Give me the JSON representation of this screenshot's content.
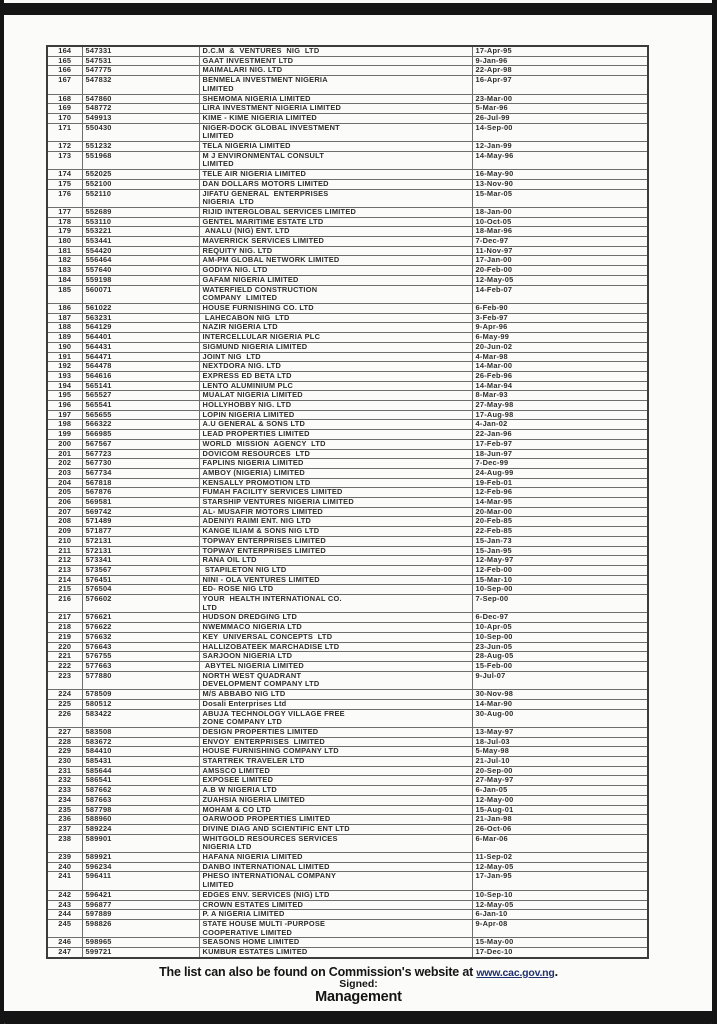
{
  "footer": {
    "note_prefix": "The list can also be found on Commission's website at ",
    "link_text": "www.cac.gov.ng",
    "note_suffix": ".",
    "signed_label": "Signed:",
    "signed_by": "Management",
    "link_color": "#20306e"
  },
  "table": {
    "rows": [
      [
        "164",
        "547331",
        "D.C.M  &  VENTURES  NIG  LTD",
        "17-Apr-95"
      ],
      [
        "165",
        "547531",
        "GAAT INVESTMENT LTD",
        "9-Jan-96"
      ],
      [
        "166",
        "547775",
        "MAIMALARI NIG. LTD",
        "22-Apr-98"
      ],
      [
        "167",
        "547832",
        "BENMELA INVESTMENT NIGERIA\nLIMITED",
        "16-Apr-97"
      ],
      [
        "168",
        "547860",
        "SHEMOMA NIGERIA LIMITED",
        "23-Mar-00"
      ],
      [
        "169",
        "548772",
        "LIRA INVESTMENT NIGERIA LIMITED",
        "5-Mar-96"
      ],
      [
        "170",
        "549913",
        "KIME - KIME NIGERIA LIMITED",
        "26-Jul-99"
      ],
      [
        "171",
        "550430",
        "NIGER-DOCK GLOBAL INVESTMENT\nLIMITED",
        "14-Sep-00"
      ],
      [
        "172",
        "551232",
        "TELA NIGERIA LIMITED",
        "12-Jan-99"
      ],
      [
        "173",
        "551968",
        "M J ENVIRONMENTAL CONSULT\nLIMITED",
        "14-May-96"
      ],
      [
        "174",
        "552025",
        "TELE AIR NIGERIA LIMITED",
        "16-May-90"
      ],
      [
        "175",
        "552100",
        "DAN DOLLARS MOTORS LIMITED",
        "13-Nov-90"
      ],
      [
        "176",
        "552110",
        "JIFATU GENERAL  ENTERPRISES\nNIGERIA  LTD",
        "15-Mar-05"
      ],
      [
        "177",
        "552689",
        "RIJID INTERGLOBAL SERVICES LIMITED",
        "18-Jan-00"
      ],
      [
        "178",
        "553110",
        "GENTEL MARITIME ESTATE LTD",
        "10-Oct-05"
      ],
      [
        "179",
        "553221",
        " ANALU (NIG) ENT. LTD",
        "18-Mar-96"
      ],
      [
        "180",
        "553441",
        "MAVERRICK SERVICES LIMITED",
        "7-Dec-97"
      ],
      [
        "181",
        "554420",
        "REQUITY NIG. LTD",
        "11-Nov-97"
      ],
      [
        "182",
        "556464",
        "AM-PM GLOBAL NETWORK LIMITED",
        "17-Jan-00"
      ],
      [
        "183",
        "557640",
        "GODIYA NIG. LTD",
        "20-Feb-00"
      ],
      [
        "184",
        "559198",
        "GAFAM NIGERIA LIMITED",
        "12-May-05"
      ],
      [
        "185",
        "560071",
        "WATERFIELD CONSTRUCTION\nCOMPANY  LIMITED",
        "14-Feb-07"
      ],
      [
        "186",
        "561022",
        "HOUSE FURNISHING CO. LTD",
        "6-Feb-90"
      ],
      [
        "187",
        "563231",
        " LAHECABON NIG  LTD",
        "3-Feb-97"
      ],
      [
        "188",
        "564129",
        "NAZIR NIGERIA LTD",
        "9-Apr-96"
      ],
      [
        "189",
        "564401",
        "INTERCELLULAR NIGERIA PLC",
        "6-May-99"
      ],
      [
        "190",
        "564431",
        "SIGMUND NIGERIA LIMITED",
        "20-Jun-02"
      ],
      [
        "191",
        "564471",
        "JOINT NIG  LTD",
        "4-Mar-98"
      ],
      [
        "192",
        "564478",
        "NEXTDORA NIG. LTD",
        "14-Mar-00"
      ],
      [
        "193",
        "564616",
        "EXPRESS ED BETA LTD",
        "26-Feb-96"
      ],
      [
        "194",
        "565141",
        "LENTO ALUMINIUM PLC",
        "14-Mar-94"
      ],
      [
        "195",
        "565527",
        "MUALAT NIGERIA LIMITED",
        "8-Mar-93"
      ],
      [
        "196",
        "565541",
        "HOLLYHOBBY NIG. LTD",
        "27-May-98"
      ],
      [
        "197",
        "565655",
        "LOPIN NIGERIA LIMITED",
        "17-Aug-98"
      ],
      [
        "198",
        "566322",
        "A.U GENERAL & SONS LTD",
        "4-Jan-02"
      ],
      [
        "199",
        "566985",
        "LEAD PROPERTIES LIMITED",
        "22-Jan-96"
      ],
      [
        "200",
        "567567",
        "WORLD  MISSION  AGENCY  LTD",
        "17-Feb-97"
      ],
      [
        "201",
        "567723",
        "DOVICOM RESOURCES  LTD",
        "18-Jun-97"
      ],
      [
        "202",
        "567730",
        "FAPLINS NIGERIA LIMITED",
        "7-Dec-99"
      ],
      [
        "203",
        "567734",
        "AMBOY (NIGERIA) LIMITED",
        "24-Aug-99"
      ],
      [
        "204",
        "567818",
        "KENSALLY PROMOTION LTD",
        "19-Feb-01"
      ],
      [
        "205",
        "567876",
        "FUMAH FACILITY SERVICES LIMITED",
        "12-Feb-96"
      ],
      [
        "206",
        "569581",
        "STARSHIP VENTURES NIGERIA LIMITED",
        "14-Mar-95"
      ],
      [
        "207",
        "569742",
        "AL- MUSAFIR MOTORS LIMITED",
        "20-Mar-00"
      ],
      [
        "208",
        "571489",
        "ADENIYI RAIMI ENT. NIG LTD",
        "20-Feb-85"
      ],
      [
        "209",
        "571877",
        "KANGE ILIAM & SONS NIG LTD",
        "22-Feb-85"
      ],
      [
        "210",
        "572131",
        "TOPWAY ENTERPRISES LIMITED",
        "15-Jan-73"
      ],
      [
        "211",
        "572131",
        "TOPWAY ENTERPRISES LIMITED",
        "15-Jan-95"
      ],
      [
        "212",
        "573341",
        "RANA OIL LTD",
        "12-May-97"
      ],
      [
        "213",
        "573567",
        " STAPILETON NIG LTD",
        "12-Feb-00"
      ],
      [
        "214",
        "576451",
        "NINI - OLA VENTURES LIMITED",
        "15-Mar-10"
      ],
      [
        "215",
        "576504",
        "ED- ROSE NIG LTD",
        "10-Sep-00"
      ],
      [
        "216",
        "576602",
        "YOUR  HEALTH INTERNATIONAL CO.\nLTD",
        "7-Sep-00"
      ],
      [
        "217",
        "576621",
        "HUDSON DREDGING LTD",
        "6-Dec-97"
      ],
      [
        "218",
        "576622",
        "NWEMMACO NIGERIA LTD",
        "10-Apr-05"
      ],
      [
        "219",
        "576632",
        "KEY  UNIVERSAL CONCEPTS  LTD",
        "10-Sep-00"
      ],
      [
        "220",
        "576643",
        "HALLIZOBATEEK MARCHADISE LTD",
        "23-Jun-05"
      ],
      [
        "221",
        "576755",
        "SARJOON NIGERIA LTD",
        "28-Aug-05"
      ],
      [
        "222",
        "577663",
        " ABYTEL NIGERIA LIMITED",
        "15-Feb-00"
      ],
      [
        "223",
        "577880",
        "NORTH WEST QUADRANT\nDEVELOPMENT COMPANY LTD",
        "9-Jul-07"
      ],
      [
        "224",
        "578509",
        "M/S ABBABO NIG LTD",
        "30-Nov-98"
      ],
      [
        "225",
        "580512",
        "Dosali Enterprises Ltd",
        "14-Mar-90"
      ],
      [
        "226",
        "583422",
        "ABUJA TECHNOLOGY VILLAGE FREE\nZONE COMPANY LTD",
        "30-Aug-00"
      ],
      [
        "227",
        "583508",
        "DESIGN PROPERTIES LIMITED",
        "13-May-97"
      ],
      [
        "228",
        "583672",
        "ENVOY  ENTERPRISES  LIMITED",
        "18-Jul-03"
      ],
      [
        "229",
        "584410",
        "HOUSE FURNISHING COMPANY LTD",
        "5-May-98"
      ],
      [
        "230",
        "585431",
        "STARTREK TRAVELER LTD",
        "21-Jul-10"
      ],
      [
        "231",
        "585644",
        "AMSSCO LIMITED",
        "20-Sep-00"
      ],
      [
        "232",
        "586541",
        "EXPOSEE LIMITED",
        "27-May-97"
      ],
      [
        "233",
        "587662",
        "A.B W NIGERIA LTD",
        "6-Jan-05"
      ],
      [
        "234",
        "587663",
        "ZUAHSIA NIGERIA LIMITED",
        "12-May-00"
      ],
      [
        "235",
        "587798",
        "MOHAM & CO LTD",
        "15-Aug-01"
      ],
      [
        "236",
        "588960",
        "OARWOOD PROPERTIES LIMITED",
        "21-Jan-98"
      ],
      [
        "237",
        "589224",
        "DIVINE DIAG AND SCIENTIFIC ENT LTD",
        "26-Oct-06"
      ],
      [
        "238",
        "589901",
        "WHITGOLD RESOURCES SERVICES\nNIGERIA LTD",
        "6-Mar-06"
      ],
      [
        "239",
        "589921",
        "HAFANA NIGERIA LIMITED",
        "11-Sep-02"
      ],
      [
        "240",
        "596234",
        "DANBO INTERNATIONAL LIMITED",
        "12-May-05"
      ],
      [
        "241",
        "596411",
        "PHESO INTERNATIONAL COMPANY\nLIMITED",
        "17-Jan-95"
      ],
      [
        "242",
        "596421",
        "EDGES ENV. SERVICES (NIG) LTD",
        "10-Sep-10"
      ],
      [
        "243",
        "596877",
        "CROWN ESTATES LIMITED",
        "12-May-05"
      ],
      [
        "244",
        "597889",
        "P. A NIGERIA LIMITED",
        "6-Jan-10"
      ],
      [
        "245",
        "598826",
        "STATE HOUSE MULTI -PURPOSE\nCOOPERATIVE LIMITED",
        "9-Apr-08"
      ],
      [
        "246",
        "598965",
        "SEASONS HOME LIMITED",
        "15-May-00"
      ],
      [
        "247",
        "599721",
        "KUMBUR ESTATES LIMITED",
        "17-Dec-10"
      ]
    ]
  }
}
